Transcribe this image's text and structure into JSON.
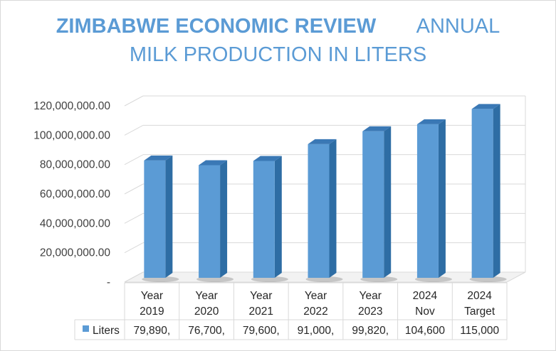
{
  "title": {
    "part1": "ZIMBABWE ECONOMIC REVIEW",
    "part2": "ANNUAL",
    "line2": "MILK PRODUCTION IN LITERS"
  },
  "colors": {
    "title": "#5b9bd5",
    "bar_front": "#5b9bd5",
    "bar_side": "#2e6da4",
    "bar_top": "#3a78b5",
    "grid": "#d9d9d9"
  },
  "chart_data": {
    "type": "bar",
    "style": "3d-column",
    "title": "ZIMBABWE ECONOMIC REVIEW ANNUAL MILK PRODUCTION IN LITERS",
    "categories": [
      [
        "Year",
        "2019"
      ],
      [
        "Year",
        "2020"
      ],
      [
        "Year",
        "2021"
      ],
      [
        "Year",
        "2022"
      ],
      [
        "Year",
        "2023"
      ],
      [
        "2024",
        "Nov"
      ],
      [
        "2024",
        "Target"
      ]
    ],
    "series": [
      {
        "name": "Liters",
        "values": [
          79890000,
          76700000,
          79600000,
          91000000,
          99820000,
          104600000,
          115000000
        ],
        "table_labels": [
          "79,890,",
          "76,700,",
          "79,600,",
          "91,000,",
          "99,820,",
          "104,600",
          "115,000"
        ]
      }
    ],
    "yticks": [
      "-",
      "20,000,000.00",
      "40,000,000.00",
      "60,000,000.00",
      "80,000,000.00",
      "100,000,000.00",
      "120,000,000.00"
    ],
    "ylim": [
      0,
      120000000
    ],
    "grid": true,
    "data_table": true,
    "legend": "in data table"
  }
}
